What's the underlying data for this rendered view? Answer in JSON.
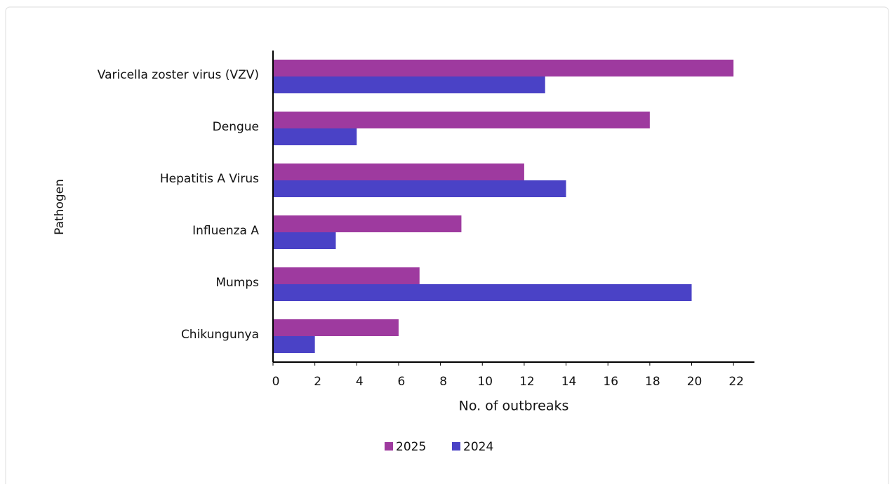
{
  "chart_data": {
    "type": "hbar",
    "x_label": "No. of outbreaks",
    "y_label": "Pathogen",
    "categories": [
      "Varicella zoster virus (VZV)",
      "Dengue",
      "Hepatitis A Virus",
      "Influenza A",
      "Mumps",
      "Chikungunya"
    ],
    "series": [
      {
        "name": "2025",
        "color": "#9e3a9f",
        "values": [
          22,
          18,
          12,
          9,
          7,
          6
        ]
      },
      {
        "name": "2024",
        "color": "#4a42c6",
        "values": [
          13,
          4,
          14,
          3,
          20,
          2
        ]
      }
    ],
    "xlim": [
      0,
      23
    ],
    "xticks": [
      0,
      2,
      4,
      6,
      8,
      10,
      12,
      14,
      16,
      18,
      20,
      22
    ],
    "legend": "bottom"
  }
}
